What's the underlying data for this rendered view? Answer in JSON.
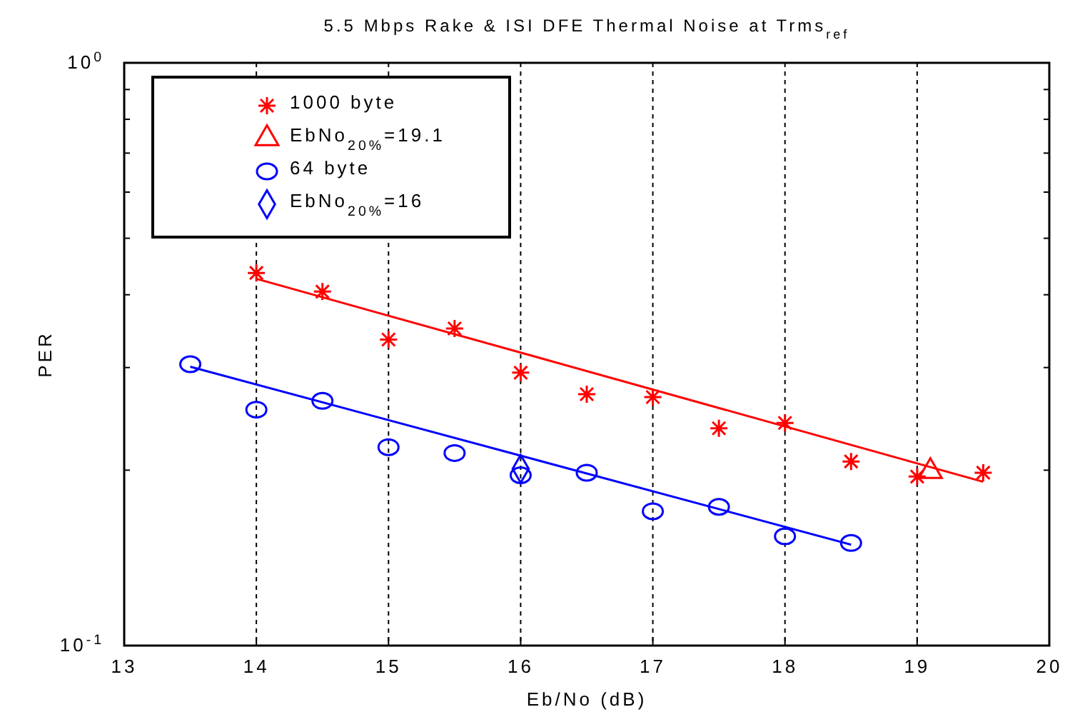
{
  "chart_data": {
    "type": "scatter",
    "title": "5.5 Mbps Rake & ISI DFE Thermal Noise at Trms$_{ref}$",
    "xlabel": "Eb/No (dB)",
    "ylabel": "PER",
    "xlim": [
      13,
      20
    ],
    "ylim": [
      0.1,
      1
    ],
    "xticks": [
      13,
      14,
      15,
      16,
      17,
      18,
      19,
      20
    ],
    "yticks": [
      {
        "value": 0.1,
        "label": "10$^{-1}$"
      },
      {
        "value": 1,
        "label": "10$^{0}$"
      }
    ],
    "log": true,
    "grid": "x",
    "legend": "top left",
    "series": [
      {
        "name": "1000 byte",
        "color": "#ff0000",
        "marker": "cross",
        "x": [
          14,
          14.5,
          15,
          15.5,
          16,
          16.5,
          17,
          17.5,
          18,
          18.5,
          19,
          19.5
        ],
        "values": [
          0.436,
          0.405,
          0.335,
          0.35,
          0.294,
          0.27,
          0.267,
          0.236,
          0.241,
          0.207,
          0.195,
          0.198
        ]
      },
      {
        "name": "EbNo$_{20%}$=19.1",
        "color": "#ff0000",
        "marker": "triangle",
        "x": [
          19.1
        ],
        "values": [
          0.199
        ]
      },
      {
        "name": "64 byte",
        "color": "#0000ff",
        "marker": "circle",
        "x": [
          13.5,
          14,
          14.5,
          15,
          15.5,
          16,
          16.5,
          17,
          17.5,
          18,
          18.5
        ],
        "values": [
          0.304,
          0.254,
          0.263,
          0.219,
          0.214,
          0.196,
          0.198,
          0.17,
          0.173,
          0.154,
          0.15
        ]
      },
      {
        "name": "EbNo$_{20%}$=16",
        "color": "#0000ff",
        "marker": "diamond",
        "x": [
          16
        ],
        "values": [
          0.201
        ]
      },
      {
        "type": "line",
        "color": "#ff0000",
        "marker": "none",
        "x": [
          14,
          19.5
        ],
        "values": [
          0.426,
          0.191
        ]
      },
      {
        "type": "line",
        "color": "#0000ff",
        "marker": "none",
        "x": [
          13.5,
          18.5
        ],
        "values": [
          0.301,
          0.149
        ]
      }
    ]
  }
}
